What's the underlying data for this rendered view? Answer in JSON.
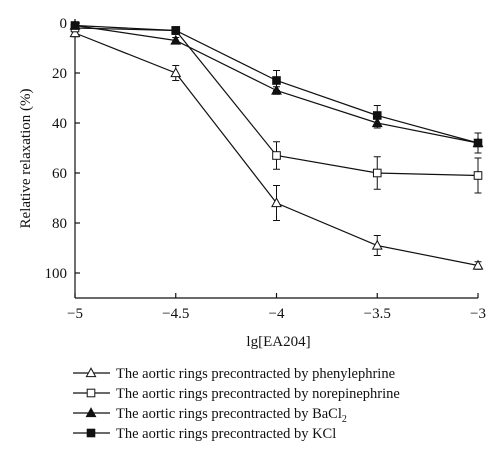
{
  "chart_data": {
    "type": "line",
    "xlabel": "lg[EA204]",
    "ylabel": "Relative relaxation (%)",
    "x": [
      -5,
      -4.5,
      -4,
      -3.5,
      -3
    ],
    "xticks": [
      "−5",
      "−4.5",
      "−4",
      "−3.5",
      "−3"
    ],
    "yticks": [
      "0",
      "20",
      "40",
      "60",
      "80",
      "100"
    ],
    "xlim": [
      -5,
      -3
    ],
    "ylim": [
      0,
      110
    ],
    "y_inverted": true,
    "grid": false,
    "legend_position": "bottom",
    "series": [
      {
        "name": "The aortic rings precontracted by phenylephrine",
        "marker": "open-triangle",
        "values": [
          4,
          20,
          72,
          89,
          97
        ],
        "errors": [
          1.5,
          3,
          7,
          4,
          1.5
        ]
      },
      {
        "name": "The aortic rings precontracted by norepinephrine",
        "marker": "open-square",
        "values": [
          2,
          3,
          53,
          60,
          61
        ],
        "errors": [
          1,
          1.5,
          5.5,
          6.5,
          7
        ]
      },
      {
        "name": "The aortic rings precontracted by BaCl",
        "name_subscript": "2",
        "marker": "filled-triangle",
        "values": [
          1,
          7,
          27,
          40,
          48
        ],
        "errors": [
          0.8,
          1.2,
          1.5,
          2,
          4
        ]
      },
      {
        "name": "The aortic rings precontracted by KCl",
        "marker": "filled-square",
        "values": [
          1,
          3,
          23,
          37,
          48
        ],
        "errors": [
          0.8,
          1.2,
          4,
          4,
          4
        ]
      }
    ]
  }
}
